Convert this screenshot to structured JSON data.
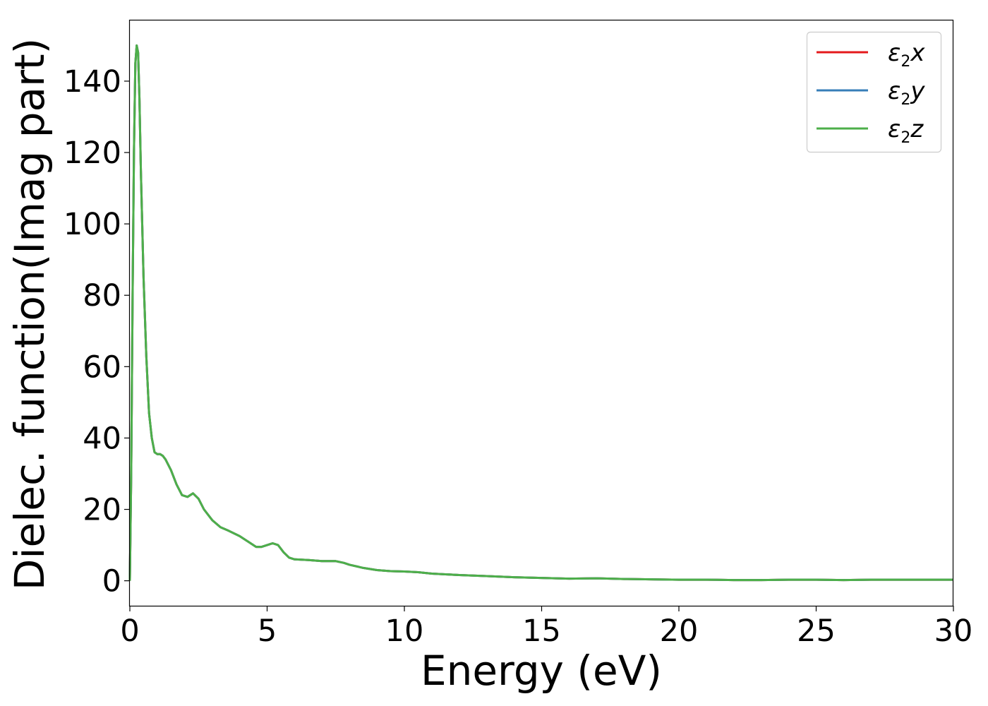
{
  "chart_data": {
    "type": "line",
    "title": "",
    "xlabel": "Energy (eV)",
    "ylabel": "Dielec. function(Imag part)",
    "xlim": [
      0,
      30
    ],
    "ylim": [
      -7,
      157
    ],
    "xticks": [
      0,
      5,
      10,
      15,
      20,
      25,
      30
    ],
    "yticks": [
      0,
      20,
      40,
      60,
      80,
      100,
      120,
      140
    ],
    "grid": false,
    "legend_position": "top-right",
    "series": [
      {
        "name": "ε₂x",
        "legend_base": "ε",
        "legend_sub": "2",
        "legend_var": "x",
        "color": "#e41a1c",
        "x": [
          0,
          0.05,
          0.1,
          0.15,
          0.2,
          0.25,
          0.3,
          0.35,
          0.4,
          0.5,
          0.6,
          0.7,
          0.8,
          0.9,
          1.0,
          1.1,
          1.2,
          1.3,
          1.5,
          1.7,
          1.9,
          2.1,
          2.3,
          2.5,
          2.7,
          3.0,
          3.3,
          3.6,
          4.0,
          4.3,
          4.6,
          4.8,
          5.0,
          5.2,
          5.4,
          5.6,
          5.8,
          6.0,
          6.5,
          7.0,
          7.5,
          7.8,
          8.0,
          8.5,
          9.0,
          9.5,
          10.0,
          10.5,
          11.0,
          12.0,
          13.0,
          14.0,
          15.0,
          16.0,
          17.0,
          17.5,
          18.0,
          19.0,
          20.0,
          21.0,
          22.0,
          23.0,
          24.0,
          25.0,
          26.0,
          27.0,
          28.0,
          29.0,
          30.0
        ],
        "values": [
          0,
          30,
          80,
          120,
          145,
          150,
          148,
          135,
          115,
          85,
          63,
          47,
          40,
          36,
          35.5,
          35.5,
          35,
          34,
          31,
          27,
          24,
          23.5,
          24.5,
          23,
          20,
          17,
          15,
          14,
          12.5,
          11,
          9.5,
          9.5,
          10,
          10.5,
          10,
          8,
          6.5,
          6,
          5.8,
          5.5,
          5.5,
          5,
          4.5,
          3.6,
          3.0,
          2.7,
          2.6,
          2.4,
          2.0,
          1.6,
          1.3,
          1.0,
          0.8,
          0.6,
          0.7,
          0.6,
          0.5,
          0.4,
          0.3,
          0.3,
          0.2,
          0.2,
          0.3,
          0.3,
          0.2,
          0.3,
          0.3,
          0.3,
          0.3
        ]
      },
      {
        "name": "ε₂y",
        "legend_base": "ε",
        "legend_sub": "2",
        "legend_var": "y",
        "color": "#377eb8",
        "x": [
          0,
          0.05,
          0.1,
          0.15,
          0.2,
          0.25,
          0.3,
          0.35,
          0.4,
          0.5,
          0.6,
          0.7,
          0.8,
          0.9,
          1.0,
          1.1,
          1.2,
          1.3,
          1.5,
          1.7,
          1.9,
          2.1,
          2.3,
          2.5,
          2.7,
          3.0,
          3.3,
          3.6,
          4.0,
          4.3,
          4.6,
          4.8,
          5.0,
          5.2,
          5.4,
          5.6,
          5.8,
          6.0,
          6.5,
          7.0,
          7.5,
          7.8,
          8.0,
          8.5,
          9.0,
          9.5,
          10.0,
          10.5,
          11.0,
          12.0,
          13.0,
          14.0,
          15.0,
          16.0,
          17.0,
          17.5,
          18.0,
          19.0,
          20.0,
          21.0,
          22.0,
          23.0,
          24.0,
          25.0,
          26.0,
          27.0,
          28.0,
          29.0,
          30.0
        ],
        "values": [
          0,
          30,
          80,
          120,
          145,
          150,
          148,
          135,
          115,
          85,
          63,
          47,
          40,
          36,
          35.5,
          35.5,
          35,
          34,
          31,
          27,
          24,
          23.5,
          24.5,
          23,
          20,
          17,
          15,
          14,
          12.5,
          11,
          9.5,
          9.5,
          10,
          10.5,
          10,
          8,
          6.5,
          6,
          5.8,
          5.5,
          5.5,
          5,
          4.5,
          3.6,
          3.0,
          2.7,
          2.6,
          2.4,
          2.0,
          1.6,
          1.3,
          1.0,
          0.8,
          0.6,
          0.7,
          0.6,
          0.5,
          0.4,
          0.3,
          0.3,
          0.2,
          0.2,
          0.3,
          0.3,
          0.2,
          0.3,
          0.3,
          0.3,
          0.3
        ]
      },
      {
        "name": "ε₂z",
        "legend_base": "ε",
        "legend_sub": "2",
        "legend_var": "z",
        "color": "#4daf4a",
        "x": [
          0,
          0.05,
          0.1,
          0.15,
          0.2,
          0.25,
          0.3,
          0.35,
          0.4,
          0.5,
          0.6,
          0.7,
          0.8,
          0.9,
          1.0,
          1.1,
          1.2,
          1.3,
          1.5,
          1.7,
          1.9,
          2.1,
          2.3,
          2.5,
          2.7,
          3.0,
          3.3,
          3.6,
          4.0,
          4.3,
          4.6,
          4.8,
          5.0,
          5.2,
          5.4,
          5.6,
          5.8,
          6.0,
          6.5,
          7.0,
          7.5,
          7.8,
          8.0,
          8.5,
          9.0,
          9.5,
          10.0,
          10.5,
          11.0,
          12.0,
          13.0,
          14.0,
          15.0,
          16.0,
          17.0,
          17.5,
          18.0,
          19.0,
          20.0,
          21.0,
          22.0,
          23.0,
          24.0,
          25.0,
          26.0,
          27.0,
          28.0,
          29.0,
          30.0
        ],
        "values": [
          0,
          30,
          80,
          120,
          145,
          150,
          148,
          135,
          115,
          85,
          63,
          47,
          40,
          36,
          35.5,
          35.5,
          35,
          34,
          31,
          27,
          24,
          23.5,
          24.5,
          23,
          20,
          17,
          15,
          14,
          12.5,
          11,
          9.5,
          9.5,
          10,
          10.5,
          10,
          8,
          6.5,
          6,
          5.8,
          5.5,
          5.5,
          5,
          4.5,
          3.6,
          3.0,
          2.7,
          2.6,
          2.4,
          2.0,
          1.6,
          1.3,
          1.0,
          0.8,
          0.6,
          0.7,
          0.6,
          0.5,
          0.4,
          0.3,
          0.3,
          0.2,
          0.2,
          0.3,
          0.3,
          0.2,
          0.3,
          0.3,
          0.3,
          0.3
        ]
      }
    ]
  }
}
